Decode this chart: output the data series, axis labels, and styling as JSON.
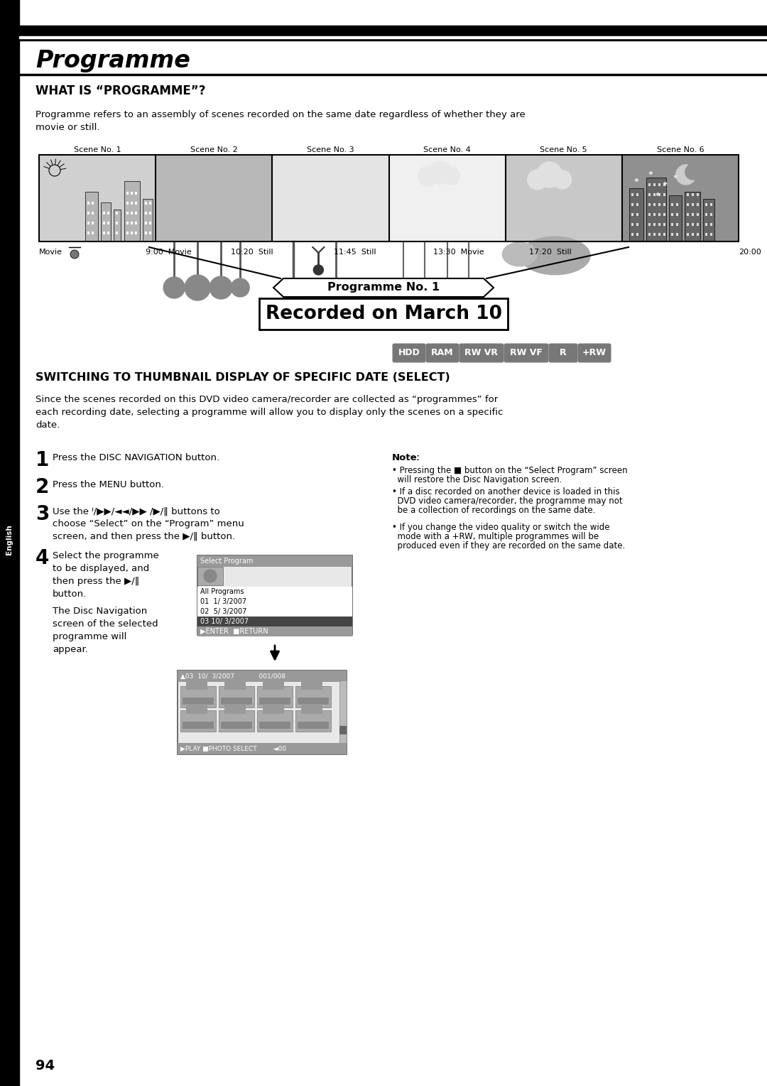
{
  "page_number": "94",
  "title": "Programme",
  "section1_title": "WHAT IS “PROGRAMME”?",
  "section1_body": "Programme refers to an assembly of scenes recorded on the same date regardless of whether they are\nmovie or still.",
  "scene_labels": [
    "Scene No. 1",
    "Scene No. 2",
    "Scene No. 3",
    "Scene No. 4",
    "Scene No. 5",
    "Scene No. 6"
  ],
  "timeline_labels": [
    "Movie",
    "9:00  Movie",
    "10:20  Still",
    "11:45  Still",
    "13:30  Movie",
    "17:20  Still",
    "20:00"
  ],
  "programme_no_text": "Programme No. 1",
  "recorded_text": "Recorded on March 10",
  "badges": [
    "HDD",
    "RAM",
    "RW VR",
    "RW VF",
    "R",
    "+RW"
  ],
  "section2_title": "SWITCHING TO THUMBNAIL DISPLAY OF SPECIFIC DATE (SELECT)",
  "section2_body": "Since the scenes recorded on this DVD video camera/recorder are collected as “programmes” for\neach recording date, selecting a programme will allow you to display only the scenes on a specific\ndate.",
  "step1": "Press the DISC NAVIGATION button.",
  "step2": "Press the MENU button.",
  "step3_line1": "Use the ᑊ/▶▶/◄◄/▶▶ /▶/‖ buttons to",
  "step3_line2": "choose “Select” on the “Program” menu",
  "step3_line3": "screen, and then press the ▶/‖ button.",
  "step4_line1": "Select the programme",
  "step4_line2": "to be displayed, and",
  "step4_line3": "then press the ▶/‖",
  "step4_line4": "button.",
  "step4_line5": "The Disc Navigation",
  "step4_line6": "screen of the selected",
  "step4_line7": "programme will",
  "step4_line8": "appear.",
  "note_head": "Noteː",
  "note1": "• Pressing the ■ button on the “Select Program” screen",
  "note1b": "  will restore the Disc Navigation screen.",
  "note2": "• If a disc recorded on another device is loaded in this",
  "note2b": "  DVD video camera/recorder, the programme may not",
  "note2c": "  be a collection of recordings on the same date.",
  "note3": "• If you change the video quality or switch the wide",
  "note3b": "  mode with a +RW, multiple programmes will be",
  "note3c": "  produced even if they are recorded on the same date.",
  "sidebar_text": "English",
  "bg_color": "#ffffff",
  "sidebar_color": "#000000",
  "black": "#000000",
  "white": "#ffffff",
  "gray_badge": "#777777",
  "gray_panel1": "#d0d0d0",
  "gray_panel2": "#b8b8b8",
  "gray_panel3": "#e4e4e4",
  "gray_panel4": "#f0f0f0",
  "gray_panel5": "#c8c8c8",
  "gray_panel6": "#909090",
  "dlg_bg": "#dddddd",
  "dlg_bar": "#999999",
  "dlg_sel": "#444444"
}
